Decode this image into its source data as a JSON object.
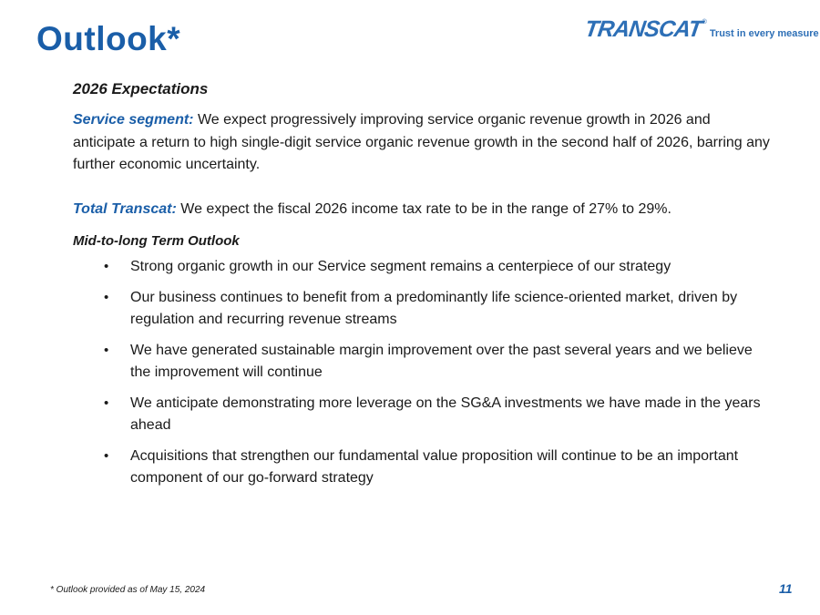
{
  "title": "Outlook*",
  "logo": {
    "wordmark": "TRANSCAT",
    "registered": "®",
    "tagline": "Trust in every measure",
    "color": "#2d6fb6"
  },
  "accent_color": "#1a5ea8",
  "section1": {
    "heading": "2026 Expectations",
    "service": {
      "label": "Service segment:",
      "text": " We expect progressively improving service organic revenue growth in 2026 and anticipate a return to high single-digit service organic revenue growth in the second half of 2026, barring any further economic uncertainty."
    },
    "total": {
      "label": "Total Transcat:",
      "text": " We expect the fiscal 2026 income tax rate to be in the range of 27% to 29%."
    }
  },
  "section2": {
    "heading": "Mid-to-long Term Outlook",
    "bullet_char": "•",
    "bullets": [
      "Strong organic growth in our Service segment remains a centerpiece of our strategy",
      "Our business continues to benefit from a predominantly life science-oriented market, driven by regulation and recurring revenue streams",
      "We have generated sustainable margin improvement over the past several years and we believe the improvement will continue",
      "We anticipate demonstrating more leverage on the SG&A investments we have made in the years ahead",
      "Acquisitions that strengthen our fundamental value proposition will continue to be an important component of our go-forward strategy"
    ]
  },
  "footnote": "* Outlook provided as of May 15, 2024",
  "page_number": "11"
}
